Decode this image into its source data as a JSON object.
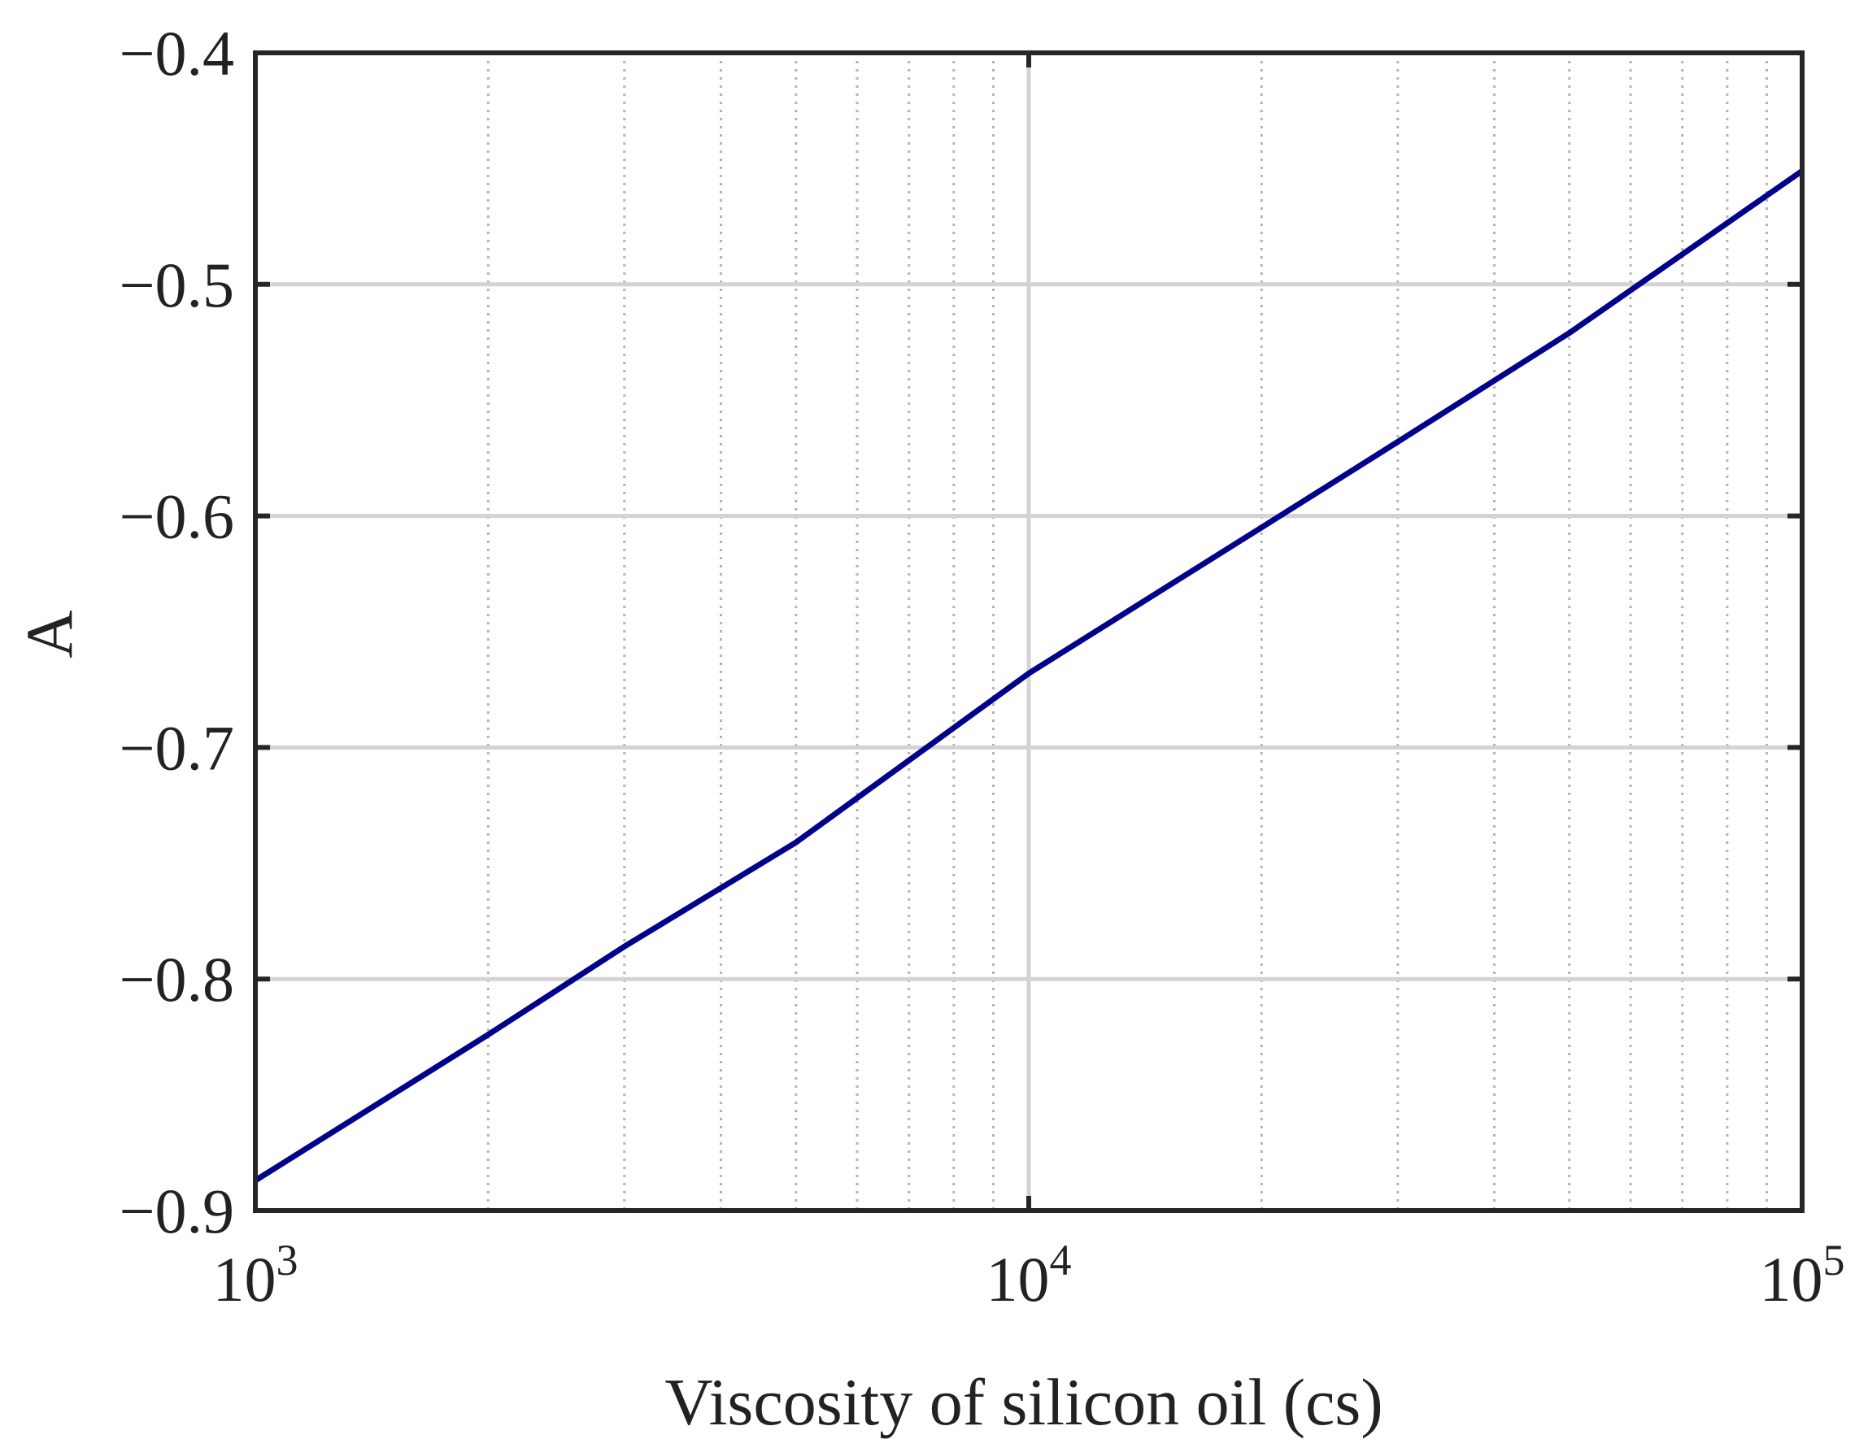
{
  "chart_data": {
    "type": "line",
    "title": "",
    "xlabel": "Viscosity of silicon oil (cs)",
    "ylabel": "A",
    "x_scale": "log",
    "xlim": [
      1000,
      100000
    ],
    "ylim": [
      -0.9,
      -0.4
    ],
    "x_ticks": [
      1000,
      10000,
      100000
    ],
    "x_tick_labels": [
      {
        "base": "10",
        "exp": "3"
      },
      {
        "base": "10",
        "exp": "4"
      },
      {
        "base": "10",
        "exp": "5"
      }
    ],
    "y_ticks": [
      -0.9,
      -0.8,
      -0.7,
      -0.6,
      -0.5,
      -0.4
    ],
    "y_tick_labels": [
      "−0.9",
      "−0.8",
      "−0.7",
      "−0.6",
      "−0.5",
      "−0.4"
    ],
    "grid": "on",
    "minor_grid_x": "on",
    "series": [
      {
        "color": "#00008B",
        "x": [
          1000,
          2000,
          3000,
          5000,
          10000,
          20000,
          30000,
          50000,
          100000
        ],
        "y": [
          -0.887,
          -0.824,
          -0.786,
          -0.741,
          -0.668,
          -0.605,
          -0.568,
          -0.521,
          -0.451
        ]
      }
    ],
    "colors": {
      "line": "#00008B",
      "major_grid": "#d3d3d3",
      "minor_grid": "#b4b4b4",
      "frame": "#262626"
    }
  }
}
